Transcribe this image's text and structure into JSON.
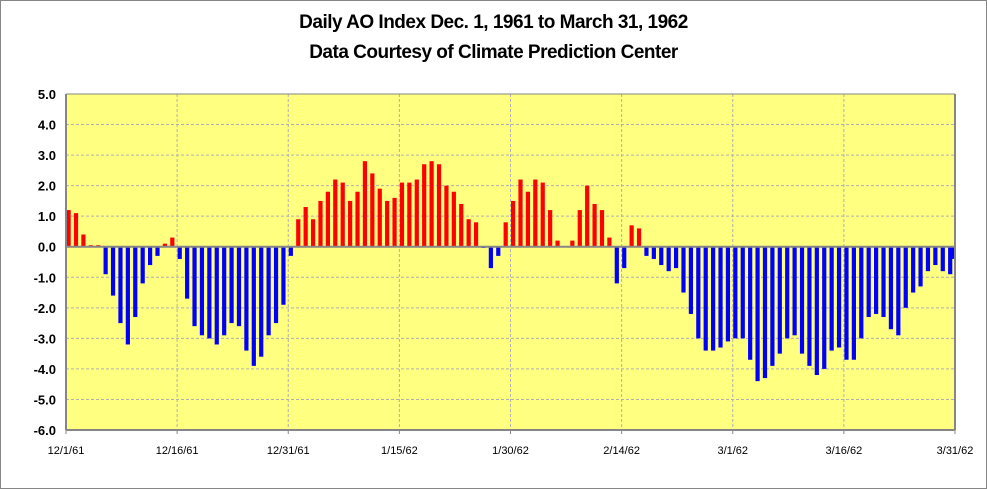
{
  "chart_data": {
    "type": "bar",
    "title": "Daily AO Index Dec. 1, 1961 to March 31, 1962",
    "subtitle": "Data Courtesy of Climate Prediction Center",
    "xlabel": "",
    "ylabel": "",
    "ylim": [
      -6.0,
      5.0
    ],
    "ytick_step": 1.0,
    "yticks": [
      "5.0",
      "4.0",
      "3.0",
      "2.0",
      "1.0",
      "0.0",
      "-1.0",
      "-2.0",
      "-3.0",
      "-4.0",
      "-5.0",
      "-6.0"
    ],
    "x_start": "12/1/61",
    "x_end": "3/31/62",
    "x_tick_every_days": 15,
    "xticks": [
      "12/1/61",
      "12/16/61",
      "12/31/61",
      "1/15/62",
      "1/30/62",
      "2/14/62",
      "3/1/62",
      "3/16/62",
      "3/31/62"
    ],
    "grid": true,
    "legend": "none",
    "colors": {
      "positive": "#ff0000",
      "negative": "#0000ff",
      "plot_background": "#ffff80",
      "gridline": "#b0b0b0",
      "axis": "#868686"
    },
    "series": [
      {
        "name": "Daily AO Index",
        "values": [
          1.2,
          1.1,
          0.4,
          0.05,
          0.05,
          -0.9,
          -1.6,
          -2.5,
          -3.2,
          -2.3,
          -1.2,
          -0.6,
          -0.3,
          0.1,
          0.3,
          -0.4,
          -1.7,
          -2.6,
          -2.9,
          -3.0,
          -3.2,
          -2.9,
          -2.5,
          -2.6,
          -3.4,
          -3.9,
          -3.6,
          -2.9,
          -2.5,
          -1.9,
          -0.3,
          0.9,
          1.3,
          0.9,
          1.5,
          1.8,
          2.2,
          2.1,
          1.5,
          1.8,
          2.8,
          2.4,
          1.9,
          1.5,
          1.6,
          2.1,
          2.1,
          2.2,
          2.7,
          2.8,
          2.7,
          2.0,
          1.8,
          1.4,
          0.9,
          0.8,
          -0.04,
          -0.7,
          -0.3,
          0.8,
          1.5,
          2.2,
          1.8,
          2.2,
          2.1,
          1.2,
          0.2,
          0.0,
          0.2,
          1.2,
          2.0,
          1.4,
          1.2,
          0.3,
          -1.2,
          -0.7,
          0.7,
          0.6,
          -0.3,
          -0.4,
          -0.6,
          -0.8,
          -0.7,
          -1.5,
          -2.2,
          -3.0,
          -3.4,
          -3.4,
          -3.3,
          -3.1,
          -3.0,
          -3.0,
          -3.7,
          -4.4,
          -4.3,
          -3.9,
          -3.5,
          -3.0,
          -2.9,
          -3.5,
          -3.9,
          -4.2,
          -4.0,
          -3.4,
          -3.3,
          -3.7,
          -3.7,
          -3.0,
          -2.3,
          -2.2,
          -2.3,
          -2.7,
          -2.9,
          -2.0,
          -1.5,
          -1.3,
          -0.8,
          -0.6,
          -0.8,
          -0.9,
          -0.4
        ]
      }
    ]
  }
}
